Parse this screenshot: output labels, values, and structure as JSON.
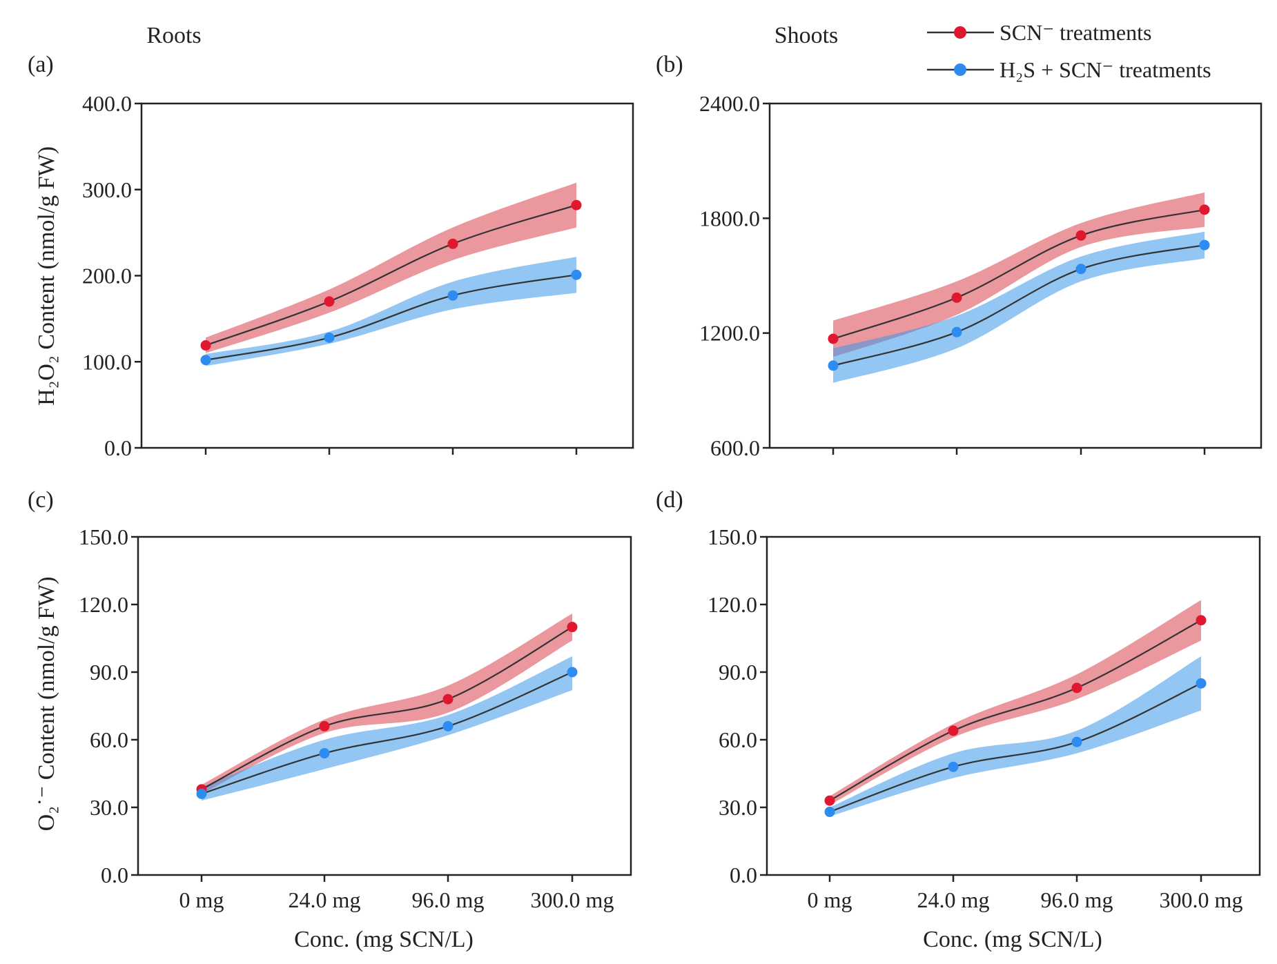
{
  "figure": {
    "column_titles": [
      "Roots",
      "Shoots"
    ],
    "legend": [
      {
        "label": "SCN⁻ treatments",
        "color": "#e0182f"
      },
      {
        "label": "H₂S + SCN⁻ treatments",
        "color": "#2e8cf0"
      }
    ],
    "colors": {
      "band_red": "#d9434f",
      "band_blue": "#3b97ea",
      "line": "#333333"
    }
  },
  "chart_data": [
    {
      "type": "line",
      "panel": "(a)",
      "title": "Roots",
      "xlabel": "",
      "ylabel": "H₂O₂ Content (nmol/g FW)",
      "categories": [
        "0 mg",
        "24.0 mg",
        "96.0 mg",
        "300.0 mg"
      ],
      "ylim": [
        0,
        400
      ],
      "yticks": [
        "0.0",
        "100.0",
        "200.0",
        "300.0",
        "400.0"
      ],
      "show_x_ticklabels": false,
      "series": [
        {
          "name": "SCN⁻ treatments",
          "values": [
            119,
            170,
            237,
            282
          ],
          "lower": [
            110,
            157,
            218,
            256
          ],
          "upper": [
            128,
            184,
            256,
            308
          ]
        },
        {
          "name": "H₂S + SCN⁻ treatments",
          "values": [
            102,
            128,
            177,
            201
          ],
          "lower": [
            95,
            121,
            161,
            180
          ],
          "upper": [
            109,
            135,
            193,
            222
          ]
        }
      ]
    },
    {
      "type": "line",
      "panel": "(b)",
      "title": "Shoots",
      "xlabel": "",
      "ylabel": "",
      "categories": [
        "0 mg",
        "24.0 mg",
        "96.0 mg",
        "300.0 mg"
      ],
      "ylim": [
        600,
        2400
      ],
      "yticks": [
        "600.0",
        "1200.0",
        "1800.0",
        "2400.0"
      ],
      "show_x_ticklabels": false,
      "series": [
        {
          "name": "SCN⁻ treatments",
          "values": [
            1170,
            1385,
            1710,
            1845
          ],
          "lower": [
            1075,
            1295,
            1650,
            1755
          ],
          "upper": [
            1265,
            1470,
            1775,
            1935
          ]
        },
        {
          "name": "H₂S + SCN⁻ treatments",
          "values": [
            1030,
            1205,
            1535,
            1660
          ],
          "lower": [
            940,
            1120,
            1470,
            1590
          ],
          "upper": [
            1120,
            1290,
            1600,
            1730
          ]
        }
      ]
    },
    {
      "type": "line",
      "panel": "(c)",
      "title": "",
      "xlabel": "Conc. (mg SCN/L)",
      "ylabel": "O₂˙⁻ Content (nmol/g FW)",
      "categories": [
        "0 mg",
        "24.0 mg",
        "96.0 mg",
        "300.0 mg"
      ],
      "ylim": [
        0,
        150
      ],
      "yticks": [
        "0.0",
        "30.0",
        "60.0",
        "90.0",
        "120.0",
        "150.0"
      ],
      "show_x_ticklabels": true,
      "series": [
        {
          "name": "SCN⁻ treatments",
          "values": [
            38,
            66,
            78,
            110
          ],
          "lower": [
            36,
            63,
            72,
            104
          ],
          "upper": [
            40,
            69,
            84,
            116
          ]
        },
        {
          "name": "H₂S + SCN⁻ treatments",
          "values": [
            36,
            54,
            66,
            90
          ],
          "lower": [
            33,
            47,
            62,
            82
          ],
          "upper": [
            39,
            60,
            71,
            97
          ]
        }
      ]
    },
    {
      "type": "line",
      "panel": "(d)",
      "title": "",
      "xlabel": "Conc. (mg SCN/L)",
      "ylabel": "",
      "categories": [
        "0 mg",
        "24.0 mg",
        "96.0 mg",
        "300.0 mg"
      ],
      "ylim": [
        0,
        150
      ],
      "yticks": [
        "0.0",
        "30.0",
        "60.0",
        "90.0",
        "120.0",
        "150.0"
      ],
      "show_x_ticklabels": true,
      "series": [
        {
          "name": "SCN⁻ treatments",
          "values": [
            33,
            64,
            83,
            113
          ],
          "lower": [
            31,
            61,
            78,
            104
          ],
          "upper": [
            35,
            67,
            89,
            122
          ]
        },
        {
          "name": "H₂S + SCN⁻ treatments",
          "values": [
            28,
            48,
            59,
            85
          ],
          "lower": [
            26,
            43,
            54,
            73
          ],
          "upper": [
            30,
            54,
            64,
            97
          ]
        }
      ]
    }
  ]
}
